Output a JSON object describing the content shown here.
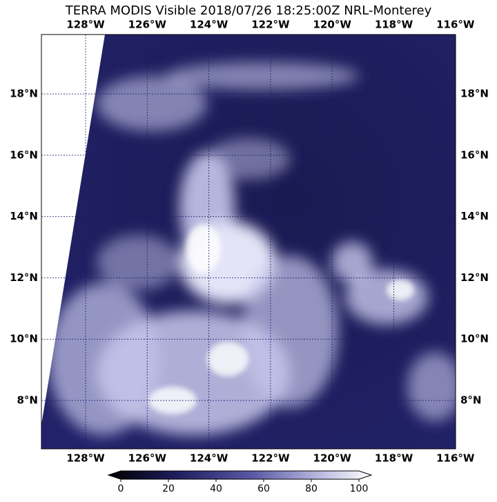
{
  "title": "TERRA MODIS Visible 2018/07/26 18:25:00Z NRL-Monterey",
  "lon_labels": [
    "128°W",
    "126°W",
    "124°W",
    "122°W",
    "120°W",
    "118°W",
    "116°W"
  ],
  "lat_labels": [
    "18°N",
    "16°N",
    "14°N",
    "12°N",
    "10°N",
    "8°N"
  ],
  "colorbar": {
    "range": [
      0,
      100
    ],
    "ticks": [
      0,
      20,
      40,
      60,
      80,
      100
    ]
  }
}
